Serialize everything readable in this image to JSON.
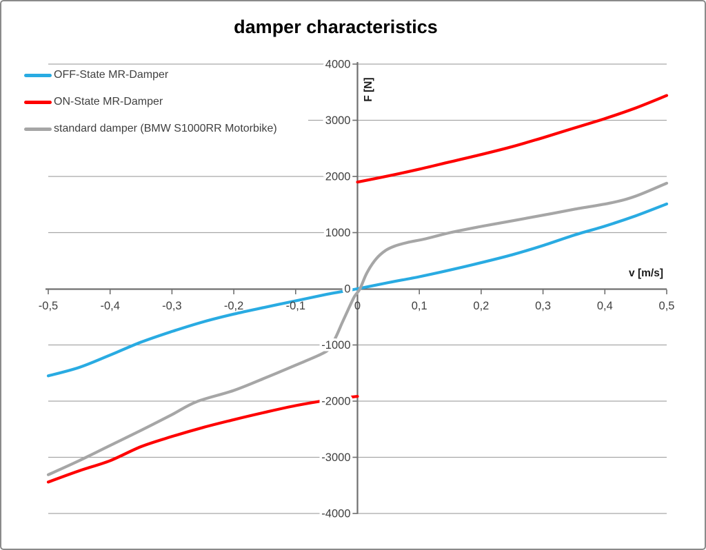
{
  "chart_data": {
    "type": "line",
    "title": "damper characteristics",
    "xlabel": "v [m/s]",
    "ylabel": "F [N]",
    "xlim": [
      -0.5,
      0.5
    ],
    "ylim": [
      -4000,
      4000
    ],
    "grid": "horizontal-only",
    "legend_position": "top-left",
    "decimal_separator": ",",
    "x_ticks": [
      {
        "v": -0.5,
        "label": "-0,5"
      },
      {
        "v": -0.4,
        "label": "-0,4"
      },
      {
        "v": -0.3,
        "label": "-0,3"
      },
      {
        "v": -0.2,
        "label": "-0,2"
      },
      {
        "v": -0.1,
        "label": "-0,1"
      },
      {
        "v": 0,
        "label": "0"
      },
      {
        "v": 0.1,
        "label": "0,1"
      },
      {
        "v": 0.2,
        "label": "0,2"
      },
      {
        "v": 0.3,
        "label": "0,3"
      },
      {
        "v": 0.4,
        "label": "0,4"
      },
      {
        "v": 0.5,
        "label": "0,5"
      }
    ],
    "y_ticks": [
      {
        "f": 4000,
        "label": "4000"
      },
      {
        "f": 3000,
        "label": "3000"
      },
      {
        "f": 2000,
        "label": "2000"
      },
      {
        "f": 1000,
        "label": "1000"
      },
      {
        "f": 0,
        "label": "0"
      },
      {
        "f": -1000,
        "label": "-1000"
      },
      {
        "f": -2000,
        "label": "-2000"
      },
      {
        "f": -3000,
        "label": "-3000"
      },
      {
        "f": -4000,
        "label": "-4000"
      }
    ],
    "series": [
      {
        "name": "OFF-State MR-Damper",
        "color": "#29ABE2",
        "segments": [
          [
            [
              -0.5,
              -1550
            ],
            [
              -0.45,
              -1400
            ],
            [
              -0.4,
              -1180
            ],
            [
              -0.35,
              -950
            ],
            [
              -0.3,
              -760
            ],
            [
              -0.25,
              -590
            ],
            [
              -0.2,
              -450
            ],
            [
              -0.15,
              -330
            ],
            [
              -0.1,
              -215
            ],
            [
              -0.05,
              -100
            ],
            [
              0,
              0
            ],
            [
              0.05,
              110
            ],
            [
              0.1,
              215
            ],
            [
              0.15,
              335
            ],
            [
              0.2,
              465
            ],
            [
              0.25,
              605
            ],
            [
              0.3,
              770
            ],
            [
              0.35,
              955
            ],
            [
              0.4,
              1115
            ],
            [
              0.45,
              1300
            ],
            [
              0.5,
              1510
            ]
          ]
        ]
      },
      {
        "name": "ON-State MR-Damper",
        "color": "#FE0000",
        "segments": [
          [
            [
              -0.5,
              -3440
            ],
            [
              -0.45,
              -3240
            ],
            [
              -0.4,
              -3060
            ],
            [
              -0.35,
              -2810
            ],
            [
              -0.3,
              -2630
            ],
            [
              -0.25,
              -2470
            ],
            [
              -0.2,
              -2330
            ],
            [
              -0.15,
              -2200
            ],
            [
              -0.1,
              -2080
            ],
            [
              -0.05,
              -1985
            ],
            [
              0,
              -1915
            ]
          ],
          [
            [
              0,
              1900
            ],
            [
              0.05,
              2010
            ],
            [
              0.1,
              2130
            ],
            [
              0.15,
              2260
            ],
            [
              0.2,
              2390
            ],
            [
              0.25,
              2530
            ],
            [
              0.3,
              2690
            ],
            [
              0.35,
              2860
            ],
            [
              0.4,
              3030
            ],
            [
              0.45,
              3220
            ],
            [
              0.5,
              3440
            ]
          ]
        ]
      },
      {
        "name": "standard damper (BMW S1000RR Motorbike)",
        "color": "#A6A6A6",
        "segments": [
          [
            [
              -0.5,
              -3310
            ],
            [
              -0.45,
              -3060
            ],
            [
              -0.4,
              -2790
            ],
            [
              -0.35,
              -2520
            ],
            [
              -0.3,
              -2240
            ],
            [
              -0.26,
              -2010
            ],
            [
              -0.2,
              -1810
            ],
            [
              -0.15,
              -1590
            ],
            [
              -0.1,
              -1360
            ],
            [
              -0.06,
              -1170
            ],
            [
              -0.045,
              -1060
            ],
            [
              -0.035,
              -860
            ],
            [
              -0.025,
              -610
            ],
            [
              -0.015,
              -370
            ],
            [
              -0.005,
              -140
            ],
            [
              0.004,
              0
            ],
            [
              0.015,
              280
            ],
            [
              0.03,
              530
            ],
            [
              0.045,
              680
            ],
            [
              0.06,
              760
            ],
            [
              0.08,
              822
            ],
            [
              0.11,
              890
            ],
            [
              0.15,
              1000
            ],
            [
              0.2,
              1110
            ],
            [
              0.25,
              1210
            ],
            [
              0.3,
              1310
            ],
            [
              0.35,
              1415
            ],
            [
              0.41,
              1530
            ],
            [
              0.45,
              1650
            ],
            [
              0.5,
              1880
            ]
          ]
        ]
      }
    ],
    "colors": {
      "axis": "#6F6F6F",
      "grid": "#A6A6A6",
      "tick_text": "#3F3F3F",
      "title_text": "#000000",
      "axis_title_text": "#1A1A1A",
      "background": "#FFFFFF"
    }
  }
}
